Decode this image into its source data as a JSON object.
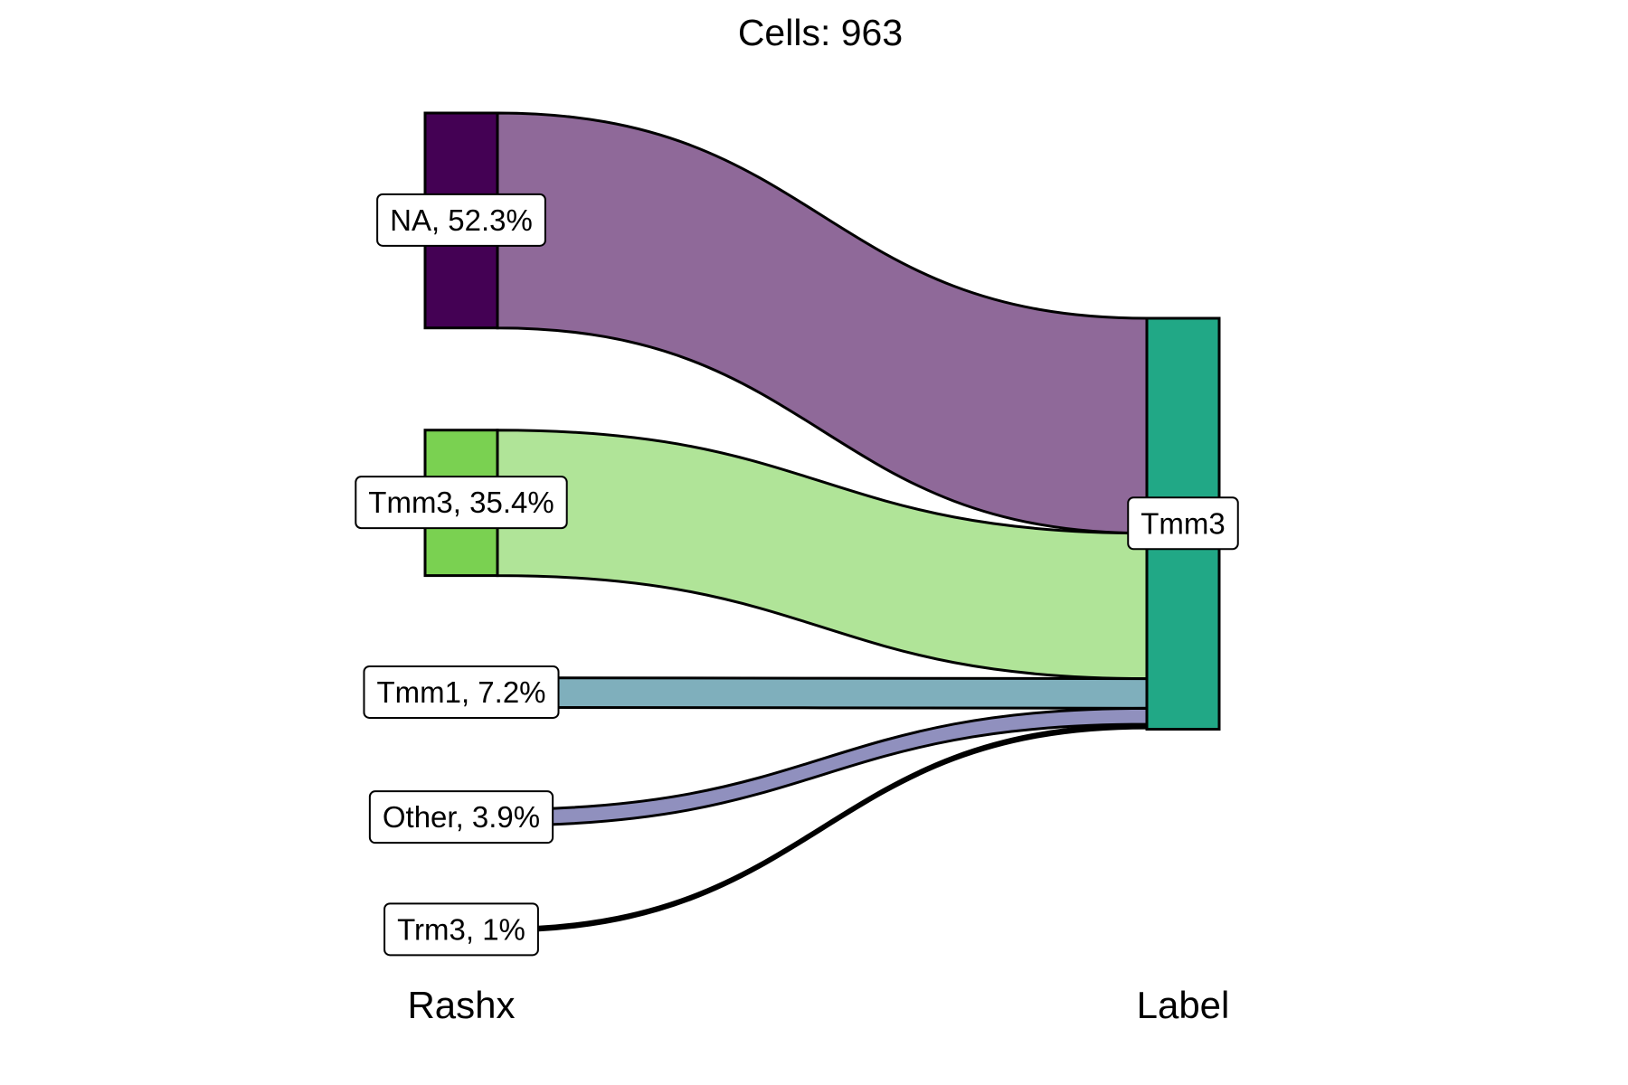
{
  "chart_data": {
    "type": "sankey",
    "title": "Cells:  963",
    "total": 963,
    "axes": [
      "Rashx",
      "Label"
    ],
    "sources": [
      {
        "name": "NA",
        "percent": 52.3,
        "label": "NA, 52.3%",
        "node_color": "#440154",
        "flow_color": "#8F6999"
      },
      {
        "name": "Tmm3",
        "percent": 35.4,
        "label": "Tmm3, 35.4%",
        "node_color": "#7AD151",
        "flow_color": "#B0E498"
      },
      {
        "name": "Tmm1",
        "percent": 7.2,
        "label": "Tmm1, 7.2%",
        "node_color": "#7FAFBC",
        "flow_color": "#7FAFBC"
      },
      {
        "name": "Other",
        "percent": 3.9,
        "label": "Other, 3.9%",
        "node_color": "#9090BE",
        "flow_color": "#9090BE"
      },
      {
        "name": "Trm3",
        "percent": 1.0,
        "label": "Trm3, 1%",
        "node_color": "#000000",
        "flow_color": "#000000"
      }
    ],
    "targets": [
      {
        "name": "Tmm3",
        "percent": 100,
        "label": "Tmm3",
        "node_color": "#21A886"
      }
    ],
    "flows": [
      {
        "from": "NA",
        "to": "Tmm3",
        "percent": 52.3
      },
      {
        "from": "Tmm3",
        "to": "Tmm3",
        "percent": 35.4
      },
      {
        "from": "Tmm1",
        "to": "Tmm3",
        "percent": 7.2
      },
      {
        "from": "Other",
        "to": "Tmm3",
        "percent": 3.9
      },
      {
        "from": "Trm3",
        "to": "Tmm3",
        "percent": 1.0
      }
    ]
  }
}
